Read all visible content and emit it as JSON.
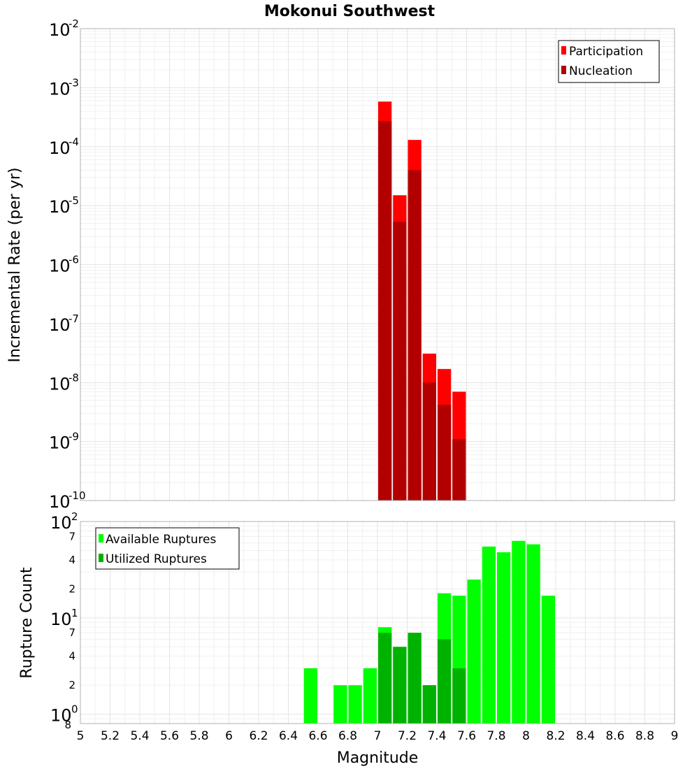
{
  "colors": {
    "participation": "#ff0000",
    "nucleation": "#b20000",
    "available": "#00ff00",
    "utilized": "#00b200"
  },
  "chart_data": [
    {
      "type": "bar",
      "title": "Mokonui Southwest",
      "xlabel": "Magnitude",
      "ylabel": "Incremental Rate (per yr)",
      "yscale": "log",
      "ylim": [
        1e-10,
        0.01
      ],
      "xlim": [
        5,
        9
      ],
      "ytick_labels": [
        {
          "base": "10",
          "exp": "-10"
        },
        {
          "base": "10",
          "exp": "-9"
        },
        {
          "base": "10",
          "exp": "-8"
        },
        {
          "base": "10",
          "exp": "-7"
        },
        {
          "base": "10",
          "exp": "-6"
        },
        {
          "base": "10",
          "exp": "-5"
        },
        {
          "base": "10",
          "exp": "-4"
        },
        {
          "base": "10",
          "exp": "-3"
        },
        {
          "base": "10",
          "exp": "-2"
        }
      ],
      "legend": [
        "Participation",
        "Nucleation"
      ],
      "legend_position": "top-right",
      "bin_centers": [
        7.05,
        7.15,
        7.25,
        7.35,
        7.45,
        7.55
      ],
      "series": [
        {
          "name": "Participation",
          "values": [
            0.00058,
            1.5e-05,
            0.00013,
            3.1e-08,
            1.7e-08,
            7e-09
          ]
        },
        {
          "name": "Nucleation",
          "values": [
            0.00027,
            5.3e-06,
            4e-05,
            1e-08,
            4.2e-09,
            1.1e-09
          ]
        }
      ]
    },
    {
      "type": "bar",
      "xlabel": "Magnitude",
      "ylabel": "Rupture Count",
      "yscale": "log",
      "ylim": [
        0.8,
        100
      ],
      "xlim": [
        5,
        9
      ],
      "ytick_labels": [
        {
          "base": "10",
          "exp": "0",
          "value": 1
        },
        {
          "base": "10",
          "exp": "1",
          "value": 10
        },
        {
          "base": "10",
          "exp": "2",
          "value": 100
        }
      ],
      "minor_tick_labels": [
        {
          "label": "8",
          "value": 0.8
        },
        {
          "label": "2",
          "value": 2
        },
        {
          "label": "4",
          "value": 4
        },
        {
          "label": "7",
          "value": 7
        },
        {
          "label": "2",
          "value": 20
        },
        {
          "label": "4",
          "value": 40
        },
        {
          "label": "7",
          "value": 70
        }
      ],
      "legend": [
        "Available Ruptures",
        "Utilized Ruptures"
      ],
      "legend_position": "top-left",
      "x_ticks": [
        "5",
        "5.2",
        "5.4",
        "5.6",
        "5.8",
        "6",
        "6.2",
        "6.4",
        "6.6",
        "6.8",
        "7",
        "7.2",
        "7.4",
        "7.6",
        "7.8",
        "8",
        "8.2",
        "8.4",
        "8.6",
        "8.8",
        "9"
      ],
      "bin_centers": [
        6.55,
        6.75,
        6.85,
        6.95,
        7.05,
        7.15,
        7.25,
        7.35,
        7.45,
        7.55,
        7.65,
        7.75,
        7.85,
        7.95,
        8.05,
        8.15
      ],
      "series": [
        {
          "name": "Available Ruptures",
          "values": [
            3,
            2,
            2,
            3,
            8,
            5,
            7,
            2,
            18,
            17,
            25,
            55,
            48,
            63,
            58,
            17
          ]
        },
        {
          "name": "Utilized Ruptures",
          "values": [
            0,
            0,
            0,
            0,
            7,
            5,
            7,
            2,
            6,
            3,
            0,
            0,
            0,
            0,
            0,
            0
          ]
        }
      ]
    }
  ]
}
